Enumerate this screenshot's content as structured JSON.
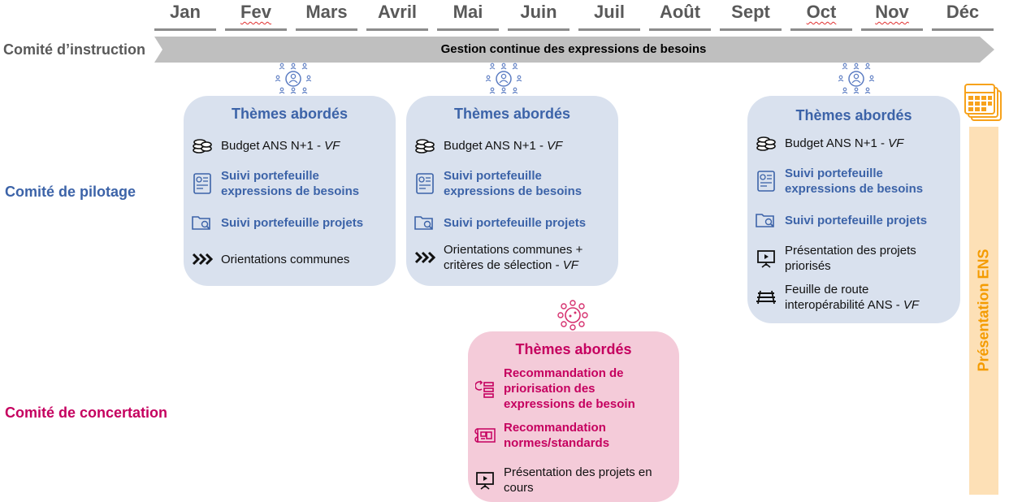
{
  "months": [
    "Jan",
    "Fev",
    "Mars",
    "Avril",
    "Mai",
    "Juin",
    "Juil",
    "Août",
    "Sept",
    "Oct",
    "Nov",
    "Déc"
  ],
  "rows": {
    "instruction": "Comité d’instruction",
    "pilotage": "Comité de pilotage",
    "concertation": "Comité de concertation"
  },
  "arrow_label": "Gestion continue des expressions de besoins",
  "cards": [
    {
      "title": "Thèmes abordés",
      "items": [
        {
          "icon": "coins-icon",
          "text": "Budget ANS N+1 - ",
          "suffix": "VF",
          "style": "plain"
        },
        {
          "icon": "dashboard-icon",
          "text": "Suivi portefeuille expressions de besoins",
          "style": "blue"
        },
        {
          "icon": "folder-search-icon",
          "text": "Suivi portefeuille projets",
          "style": "blue"
        },
        {
          "icon": "chevrons-icon",
          "text": "Orientations communes",
          "style": "plain"
        }
      ]
    },
    {
      "title": "Thèmes abordés",
      "items": [
        {
          "icon": "coins-icon",
          "text": "Budget ANS N+1 - ",
          "suffix": "VF",
          "style": "plain"
        },
        {
          "icon": "dashboard-icon",
          "text": "Suivi portefeuille expressions de besoins",
          "style": "blue"
        },
        {
          "icon": "folder-search-icon",
          "text": "Suivi portefeuille projets",
          "style": "blue"
        },
        {
          "icon": "chevrons-icon",
          "text": "Orientations communes + critères de sélection - ",
          "suffix": "VF",
          "style": "plain"
        }
      ]
    },
    {
      "title": "Thèmes abordés",
      "items": [
        {
          "icon": "coins-icon",
          "text": "Budget ANS N+1 - ",
          "suffix": "VF",
          "style": "plain"
        },
        {
          "icon": "dashboard-icon",
          "text": "Suivi portefeuille expressions de besoins",
          "style": "blue"
        },
        {
          "icon": "folder-search-icon",
          "text": "Suivi portefeuille projets",
          "style": "blue"
        },
        {
          "icon": "presentation-icon",
          "text": "Présentation des projets priorisés",
          "style": "plain"
        },
        {
          "icon": "railway-icon",
          "text": "Feuille de route interopérabilité ANS - ",
          "suffix": "VF",
          "style": "plain"
        }
      ]
    },
    {
      "title": "Thèmes abordés",
      "items": [
        {
          "icon": "priority-list-icon",
          "text": "Recommandation de priorisation des expressions de besoin",
          "style": "pink"
        },
        {
          "icon": "blueprint-icon",
          "text": "Recommandation normes/standards",
          "style": "pink"
        },
        {
          "icon": "presentation-icon",
          "text": "Présentation des projets en cours",
          "style": "plain"
        }
      ]
    }
  ],
  "ens_label": "Présentation ENS",
  "colors": {
    "pilotage": "#3c63a8",
    "concertation": "#c5005f",
    "instruction": "#595959",
    "arrow": "#bfbfbf",
    "ens_bar": "#fde0b6",
    "ens_text": "#f49b00",
    "card_blue": "#d9e1ee",
    "card_pink": "#f4cbd9"
  }
}
